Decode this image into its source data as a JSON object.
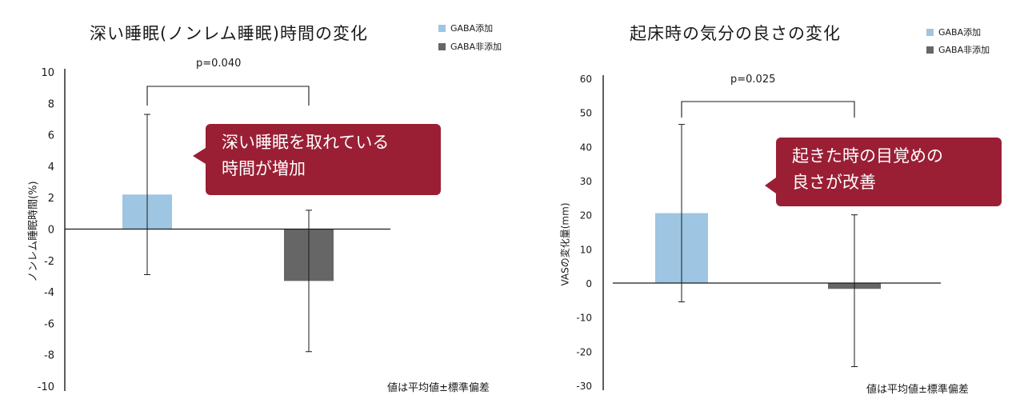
{
  "legend": {
    "added": {
      "label": "GABA添加",
      "color": "#9ec5e2"
    },
    "not_added": {
      "label": "GABA非添加",
      "color": "#666666"
    }
  },
  "left": {
    "title": "深い睡眠(ノンレム睡眠)時間の変化",
    "ylabel": "ノンレム睡眠時間(%)",
    "pvalue": "p=0.040",
    "callout": {
      "line1": "深い睡眠を取れている",
      "line2": "時間が増加"
    },
    "note": "値は平均値±標準偏差"
  },
  "right": {
    "title": "起床時の気分の良さの変化",
    "ylabel": "VASの変化量(mm)",
    "pvalue": "p=0.025",
    "callout": {
      "line1": "起きた時の目覚めの",
      "line2": "良さが改善"
    },
    "note": "値は平均値±標準偏差"
  },
  "chart_data": [
    {
      "type": "bar",
      "title": "深い睡眠(ノンレム睡眠)時間の変化",
      "xlabel": "",
      "ylabel": "ノンレム睡眠時間(%)",
      "ylim": [
        -10,
        10
      ],
      "yticks": [
        10,
        8,
        6,
        4,
        2,
        0,
        -2,
        -4,
        -6,
        -8,
        -10
      ],
      "grid": false,
      "legend_position": "top-right",
      "series": [
        {
          "name": "GABA添加",
          "value": 2.2,
          "error_low": -2.9,
          "error_high": 7.3,
          "color": "#9ec5e2"
        },
        {
          "name": "GABA非添加",
          "value": -3.3,
          "error_low": -7.8,
          "error_high": 1.2,
          "color": "#666666"
        }
      ],
      "annotation": "p=0.040"
    },
    {
      "type": "bar",
      "title": "起床時の気分の良さの変化",
      "xlabel": "",
      "ylabel": "VASの変化量(mm)",
      "ylim": [
        -30,
        60
      ],
      "yticks": [
        60,
        50,
        40,
        30,
        20,
        10,
        0,
        -10,
        -20,
        -30
      ],
      "grid": false,
      "legend_position": "top-right",
      "series": [
        {
          "name": "GABA添加",
          "value": 20.5,
          "error_low": -5.5,
          "error_high": 46.5,
          "color": "#9ec5e2"
        },
        {
          "name": "GABA非添加",
          "value": -1.7,
          "error_low": -24.5,
          "error_high": 20.0,
          "color": "#666666"
        }
      ],
      "annotation": "p=0.025"
    }
  ]
}
